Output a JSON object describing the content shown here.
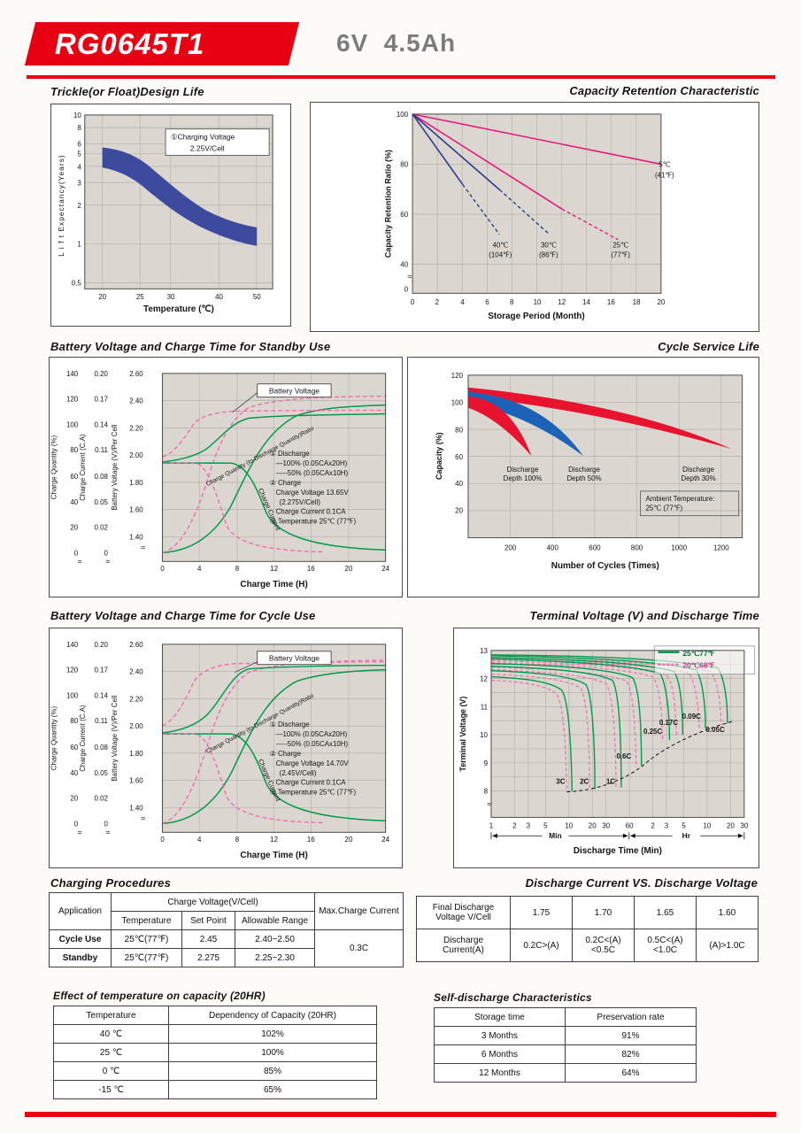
{
  "header": {
    "model": "RG0645T1",
    "spec": "6V  4.5Ah"
  },
  "symbols": {
    "axis_break": "≈"
  },
  "chart_data": [
    {
      "id": "design_life",
      "type": "area",
      "title": "Trickle(or Float)Design Life",
      "xlabel": "Temperature (℃)",
      "ylabel": "L i f t   Expectancy(Years)",
      "x_scale": "log",
      "y_scale": "log",
      "xticks": [
        "20",
        "25",
        "30",
        "40",
        "50"
      ],
      "yticks": [
        "10",
        "8",
        "6",
        "5",
        "4",
        "3",
        "2",
        "1",
        "0.5"
      ],
      "annotation": [
        "①Charging Voltage",
        "2.25V/Cell"
      ],
      "band_color": "#3c4b9e",
      "series": [
        {
          "name": "design-life-band-upper",
          "x": [
            20,
            25,
            30,
            40,
            50
          ],
          "y": [
            5.5,
            4.6,
            3.3,
            1.9,
            1.35
          ]
        },
        {
          "name": "design-life-band-lower",
          "x": [
            20,
            25,
            30,
            40,
            50
          ],
          "y": [
            4.2,
            3.5,
            2.4,
            1.35,
            0.95
          ]
        }
      ]
    },
    {
      "id": "capacity_retention",
      "type": "line",
      "title": "Capacity Retention  Characteristic",
      "xlabel": "Storage Period (Month)",
      "ylabel": "Capacity Retention Ratio (%)",
      "xticks": [
        "0",
        "2",
        "4",
        "6",
        "8",
        "10",
        "12",
        "14",
        "16",
        "18",
        "20"
      ],
      "yticks": [
        "100",
        "80",
        "60",
        "40"
      ],
      "y_origin": "0",
      "series": [
        {
          "name": "5C",
          "label": [
            "5℃",
            "(41℉)"
          ],
          "color": "#e8197d",
          "x": [
            0,
            20
          ],
          "y": [
            100,
            80
          ]
        },
        {
          "name": "25C",
          "label": [
            "25℃",
            "(77℉)"
          ],
          "color": "#e8197d",
          "x": [
            0,
            12,
            16.5
          ],
          "y": [
            100,
            62,
            50
          ]
        },
        {
          "name": "30C",
          "label": [
            "30℃",
            "(86℉)"
          ],
          "color": "#2b3a90",
          "x": [
            0,
            7,
            11
          ],
          "y": [
            100,
            70,
            52
          ]
        },
        {
          "name": "40C",
          "label": [
            "40℃",
            "(104℉)"
          ],
          "color": "#2b3a90",
          "x": [
            0,
            4,
            7
          ],
          "y": [
            100,
            72,
            52
          ]
        }
      ]
    },
    {
      "id": "standby_charge",
      "type": "line",
      "title": "Battery Voltage and Charge Time for Standby Use",
      "xlabel": "Charge Time (H)",
      "xticks": [
        "0",
        "4",
        "8",
        "12",
        "16",
        "20",
        "24"
      ],
      "axis_quantity": {
        "label": "Charge Quantity (%)",
        "ticks": [
          "140",
          "120",
          "100",
          "80",
          "60",
          "40",
          "20",
          "0"
        ]
      },
      "axis_current": {
        "label": "Charge Current (C.A)",
        "ticks": [
          "0.20",
          "0.17",
          "0.14",
          "0.11",
          "0.08",
          "0.05",
          "0.02",
          "0"
        ]
      },
      "axis_voltage": {
        "label": "Battery Voltage (V)/Per Cell",
        "ticks": [
          "2.60",
          "2.40",
          "2.20",
          "2.00",
          "1.80",
          "1.60",
          "1.40"
        ]
      },
      "curve_labels": {
        "voltage": "Battery Voltage",
        "quantity": "Charge Quantity (to-Discharge Quantity)Ratio",
        "current": "Charge Current"
      },
      "notes": [
        "① Discharge",
        "—100% (0.05CAx20H)",
        "-----50% (0.05CAx10H)",
        "② Charge",
        "Charge Voltage 13.65V",
        "(2.275V/Cell)",
        "Charge Current 0.1CA",
        "③ Temperature 25℃ (77℉)"
      ],
      "series": [
        {
          "name": "battery-voltage-100pct",
          "color": "#009a4e",
          "style": "solid",
          "x": [
            0,
            4,
            8,
            12,
            24
          ],
          "voltage": [
            1.95,
            2.02,
            2.22,
            2.28,
            2.29
          ]
        },
        {
          "name": "battery-voltage-50pct",
          "color": "#f06eae",
          "style": "dashed",
          "x": [
            0,
            2,
            5,
            8,
            24
          ],
          "voltage": [
            2.0,
            2.1,
            2.3,
            2.32,
            2.32
          ]
        },
        {
          "name": "charge-quantity-100pct",
          "color": "#009a4e",
          "style": "solid",
          "x": [
            0,
            4,
            8,
            12,
            16,
            24
          ],
          "quantity_pct": [
            0,
            18,
            55,
            88,
            105,
            115
          ]
        },
        {
          "name": "charge-quantity-50pct",
          "color": "#f06eae",
          "style": "dashed",
          "x": [
            0,
            2,
            4,
            8,
            12,
            24
          ],
          "quantity_pct": [
            0,
            25,
            62,
            105,
            118,
            122
          ]
        },
        {
          "name": "charge-current-100pct",
          "color": "#009a4e",
          "style": "solid",
          "x": [
            0,
            7,
            10,
            14,
            24
          ],
          "current_ca": [
            0.1,
            0.1,
            0.06,
            0.02,
            0.005
          ]
        },
        {
          "name": "charge-current-50pct",
          "color": "#f06eae",
          "style": "dashed",
          "x": [
            0,
            3.5,
            6,
            9,
            16
          ],
          "current_ca": [
            0.1,
            0.1,
            0.05,
            0.012,
            0.002
          ]
        }
      ]
    },
    {
      "id": "cycle_service_life",
      "type": "area",
      "title": "Cycle Service Life",
      "xlabel": "Number of Cycles (Times)",
      "ylabel": "Capacity (%)",
      "xticks": [
        "200",
        "400",
        "600",
        "800",
        "1000",
        "1200"
      ],
      "yticks": [
        "120",
        "100",
        "80",
        "60",
        "40",
        "20"
      ],
      "annotation": [
        "Ambient Temperature:",
        "25℃ (77℉)"
      ],
      "bands": [
        {
          "label": [
            "Discharge",
            "Depth 100%"
          ],
          "color": "#e8132f",
          "cycles_to_60pct": 300
        },
        {
          "label": [
            "Discharge",
            "Depth 50%"
          ],
          "color": "#1c63b7",
          "cycles_to_60pct": 550
        },
        {
          "label": [
            "Discharge",
            "Depth 30%"
          ],
          "color": "#e8132f",
          "cycles_to_60pct": 1250
        }
      ]
    },
    {
      "id": "cycle_charge",
      "type": "line",
      "title": "Battery Voltage and Charge Time for Cycle Use",
      "xlabel": "Charge Time (H)",
      "xticks": [
        "0",
        "4",
        "8",
        "12",
        "16",
        "20",
        "24"
      ],
      "axis_quantity": {
        "label": "Charge Quantity (%)",
        "ticks": [
          "140",
          "120",
          "100",
          "80",
          "60",
          "40",
          "20",
          "0"
        ]
      },
      "axis_current": {
        "label": "Charge Current (C.A)",
        "ticks": [
          "0.20",
          "0.17",
          "0.14",
          "0.11",
          "0.08",
          "0.05",
          "0.02",
          "0"
        ]
      },
      "axis_voltage": {
        "label": "Battery Voltage (V)/Per Cell",
        "ticks": [
          "2.60",
          "2.40",
          "2.20",
          "2.00",
          "1.80",
          "1.60",
          "1.40"
        ]
      },
      "curve_labels": {
        "voltage": "Battery Voltage",
        "quantity": "Charge Quantity (to-Discharge Quantity)Ratio",
        "current": "Charge Current"
      },
      "notes": [
        "① Discharge",
        "—100% (0.05CAx20H)",
        "-----50% (0.05CAx10H)",
        "② Charge",
        "Charge Voltage 14.70V",
        "(2.45V/Cell)",
        "Charge Current 0.1CA",
        "③ Temperature 25℃ (77℉)"
      ],
      "series": [
        {
          "name": "battery-voltage-100pct",
          "color": "#009a4e",
          "style": "solid",
          "x": [
            0,
            4,
            8,
            12,
            24
          ],
          "voltage": [
            1.95,
            2.05,
            2.35,
            2.43,
            2.44
          ]
        },
        {
          "name": "battery-voltage-50pct",
          "color": "#f06eae",
          "style": "dashed",
          "x": [
            0,
            2,
            5,
            8,
            24
          ],
          "voltage": [
            2.0,
            2.15,
            2.45,
            2.47,
            2.47
          ]
        },
        {
          "name": "charge-quantity-100pct",
          "color": "#009a4e",
          "style": "solid",
          "x": [
            0,
            4,
            8,
            12,
            16,
            24
          ],
          "quantity_pct": [
            0,
            18,
            58,
            95,
            112,
            120
          ]
        },
        {
          "name": "charge-quantity-50pct",
          "color": "#f06eae",
          "style": "dashed",
          "x": [
            0,
            2,
            4,
            8,
            12,
            24
          ],
          "quantity_pct": [
            0,
            25,
            65,
            110,
            122,
            128
          ]
        },
        {
          "name": "charge-current-100pct",
          "color": "#009a4e",
          "style": "solid",
          "x": [
            0,
            7,
            10,
            14,
            24
          ],
          "current_ca": [
            0.1,
            0.1,
            0.06,
            0.02,
            0.005
          ]
        },
        {
          "name": "charge-current-50pct",
          "color": "#f06eae",
          "style": "dashed",
          "x": [
            0,
            3.5,
            6,
            9,
            16
          ],
          "current_ca": [
            0.1,
            0.1,
            0.05,
            0.012,
            0.002
          ]
        }
      ]
    },
    {
      "id": "terminal_voltage",
      "type": "line",
      "title": "Terminal Voltage (V) and Discharge Time",
      "xlabel": "Discharge Time (Min)",
      "ylabel": "Terminal Voltage (V)",
      "yticks": [
        "13",
        "12",
        "11",
        "10",
        "9",
        "8"
      ],
      "xticks_min": [
        "1",
        "2",
        "3",
        "5",
        "10",
        "20",
        "30",
        "60"
      ],
      "xticks_hr": [
        "2",
        "3",
        "5",
        "10",
        "20",
        "30"
      ],
      "axis_units": [
        "Min",
        "Hr"
      ],
      "legend": [
        {
          "label": "25℃77℉",
          "color": "#009a4e",
          "style": "solid"
        },
        {
          "label": "20℃68℉",
          "color": "#f06eae",
          "style": "dashed"
        }
      ],
      "curve_labels": [
        "3C",
        "2C",
        "1C",
        "0.6C",
        "0.25C",
        "0.17C",
        "0.09C",
        "0.05C"
      ],
      "series_note": "Discharge curves for rates 3C to 0.05C; solid = 25℃, dashed = 20℃; knee voltage rises from ~8V at 3C to ~10.5V at 0.05C"
    }
  ],
  "tables": {
    "charging": {
      "title": "Charging Procedures",
      "col_application": "Application",
      "col_charge_voltage": "Charge Voltage(V/Cell)",
      "col_temperature": "Temperature",
      "col_set_point": "Set Point",
      "col_allowable_range": "Allowable Range",
      "col_max_current": "Max.Charge Current",
      "rows": [
        {
          "application": "Cycle Use",
          "temperature": "25℃(77℉)",
          "set_point": "2.45",
          "range": "2.40~2.50"
        },
        {
          "application": "Standby",
          "temperature": "25℃(77℉)",
          "set_point": "2.275",
          "range": "2.25~2.30"
        }
      ],
      "max_current": "0.3C"
    },
    "discharge": {
      "title": "Discharge Current VS. Discharge Voltage",
      "row1_label": [
        "Final Discharge",
        "Voltage V/Cell"
      ],
      "row1_values": [
        "1.75",
        "1.70",
        "1.65",
        "1.60"
      ],
      "row2_label": [
        "Discharge",
        "Current(A)"
      ],
      "row2_values": [
        "0.2C>(A)",
        "0.2C<(A)<0.5C",
        "0.5C<(A)<1.0C",
        "(A)>1.0C"
      ]
    },
    "temperature_capacity": {
      "title": "Effect of tem­perature on capacity (20HR)",
      "headers": [
        "Temperature",
        "Dependency of Capacity (20HR)"
      ],
      "rows": [
        [
          "40 ℃",
          "102%"
        ],
        [
          "25 ℃",
          "100%"
        ],
        [
          "0 ℃",
          "85%"
        ],
        [
          "-15 ℃",
          "65%"
        ]
      ]
    },
    "self_discharge": {
      "title": "Self-discharge Characteristics",
      "headers": [
        "Storage time",
        "Preservation rate"
      ],
      "rows": [
        [
          "3 Months",
          "91%"
        ],
        [
          "6 Months",
          "82%"
        ],
        [
          "12 Months",
          "64%"
        ]
      ]
    }
  }
}
